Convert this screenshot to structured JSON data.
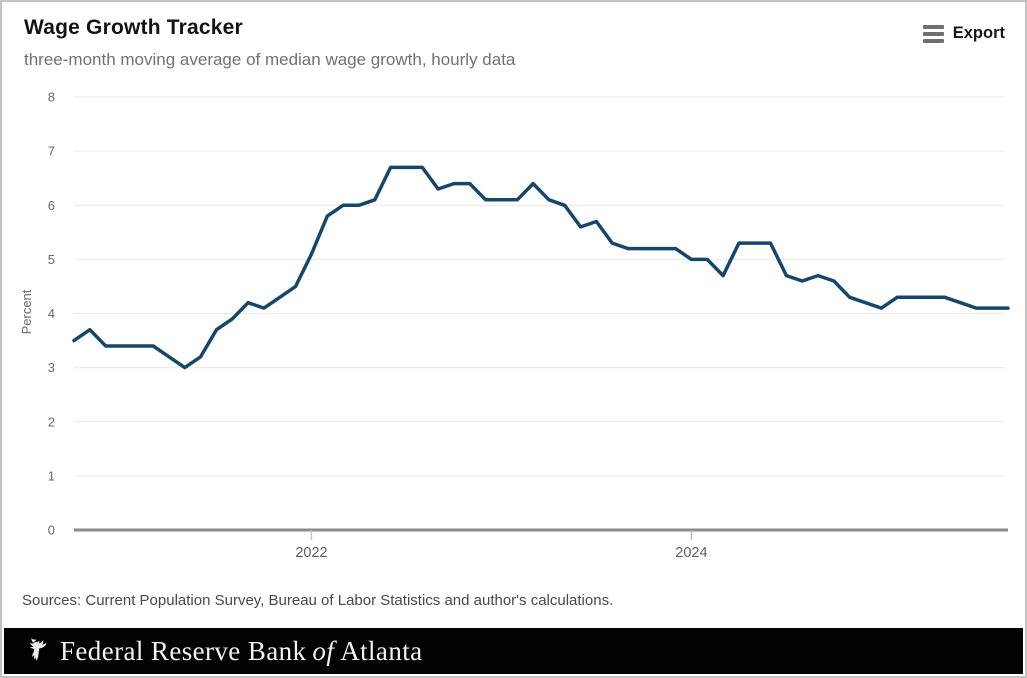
{
  "header": {
    "title": "Wage Growth Tracker",
    "subtitle": "three-month moving average of median wage growth, hourly data",
    "export_label": "Export"
  },
  "chart_data": {
    "type": "line",
    "title": "Wage Growth Tracker",
    "subtitle": "three-month moving average of median wage growth, hourly data",
    "ylabel": "Percent",
    "ylim": [
      0,
      8
    ],
    "yticks": [
      0,
      1,
      2,
      3,
      4,
      5,
      6,
      7,
      8
    ],
    "grid": "horizontal",
    "legend": "none",
    "line_color": "#17466b",
    "x_tick_labels": [
      "2022",
      "2024"
    ],
    "x_tick_month_indices": [
      15,
      39
    ],
    "months": [
      "2020-10",
      "2020-11",
      "2020-12",
      "2021-01",
      "2021-02",
      "2021-03",
      "2021-04",
      "2021-05",
      "2021-06",
      "2021-07",
      "2021-08",
      "2021-09",
      "2021-10",
      "2021-11",
      "2021-12",
      "2022-01",
      "2022-02",
      "2022-03",
      "2022-04",
      "2022-05",
      "2022-06",
      "2022-07",
      "2022-08",
      "2022-09",
      "2022-10",
      "2022-11",
      "2022-12",
      "2023-01",
      "2023-02",
      "2023-03",
      "2023-04",
      "2023-05",
      "2023-06",
      "2023-07",
      "2023-08",
      "2023-09",
      "2023-10",
      "2023-11",
      "2023-12",
      "2024-01",
      "2024-02",
      "2024-03",
      "2024-04",
      "2024-05",
      "2024-06",
      "2024-07",
      "2024-08",
      "2024-09",
      "2024-10",
      "2024-11",
      "2024-12",
      "2025-01",
      "2025-02",
      "2025-03",
      "2025-04",
      "2025-05",
      "2025-06",
      "2025-07",
      "2025-08",
      "2025-09"
    ],
    "values": [
      3.5,
      3.7,
      3.4,
      3.4,
      3.4,
      3.4,
      3.2,
      3.0,
      3.2,
      3.7,
      3.9,
      4.2,
      4.1,
      4.3,
      4.5,
      5.1,
      5.8,
      6.0,
      6.0,
      6.1,
      6.7,
      6.7,
      6.7,
      6.3,
      6.4,
      6.4,
      6.1,
      6.1,
      6.1,
      6.4,
      6.1,
      6.0,
      5.6,
      5.7,
      5.3,
      5.2,
      5.2,
      5.2,
      5.2,
      5.0,
      5.0,
      4.7,
      5.3,
      5.3,
      5.3,
      4.7,
      4.6,
      4.7,
      4.6,
      4.3,
      4.2,
      4.1,
      4.3,
      4.3,
      4.3,
      4.3,
      4.2,
      4.1,
      4.1,
      4.1
    ]
  },
  "sources": {
    "text": "Sources: Current Population Survey, Bureau of Labor Statistics and author's calculations."
  },
  "footer": {
    "brand_pre": "Federal Reserve Bank",
    "brand_of": "of",
    "brand_post": "Atlanta"
  },
  "colors": {
    "line": "#17466b",
    "gridline": "#e9e9e9",
    "baseline": "#8a8a8a",
    "footer_background": "#020202",
    "footer_text": "#f2f2f2",
    "subtitle_text": "#6e7276"
  }
}
